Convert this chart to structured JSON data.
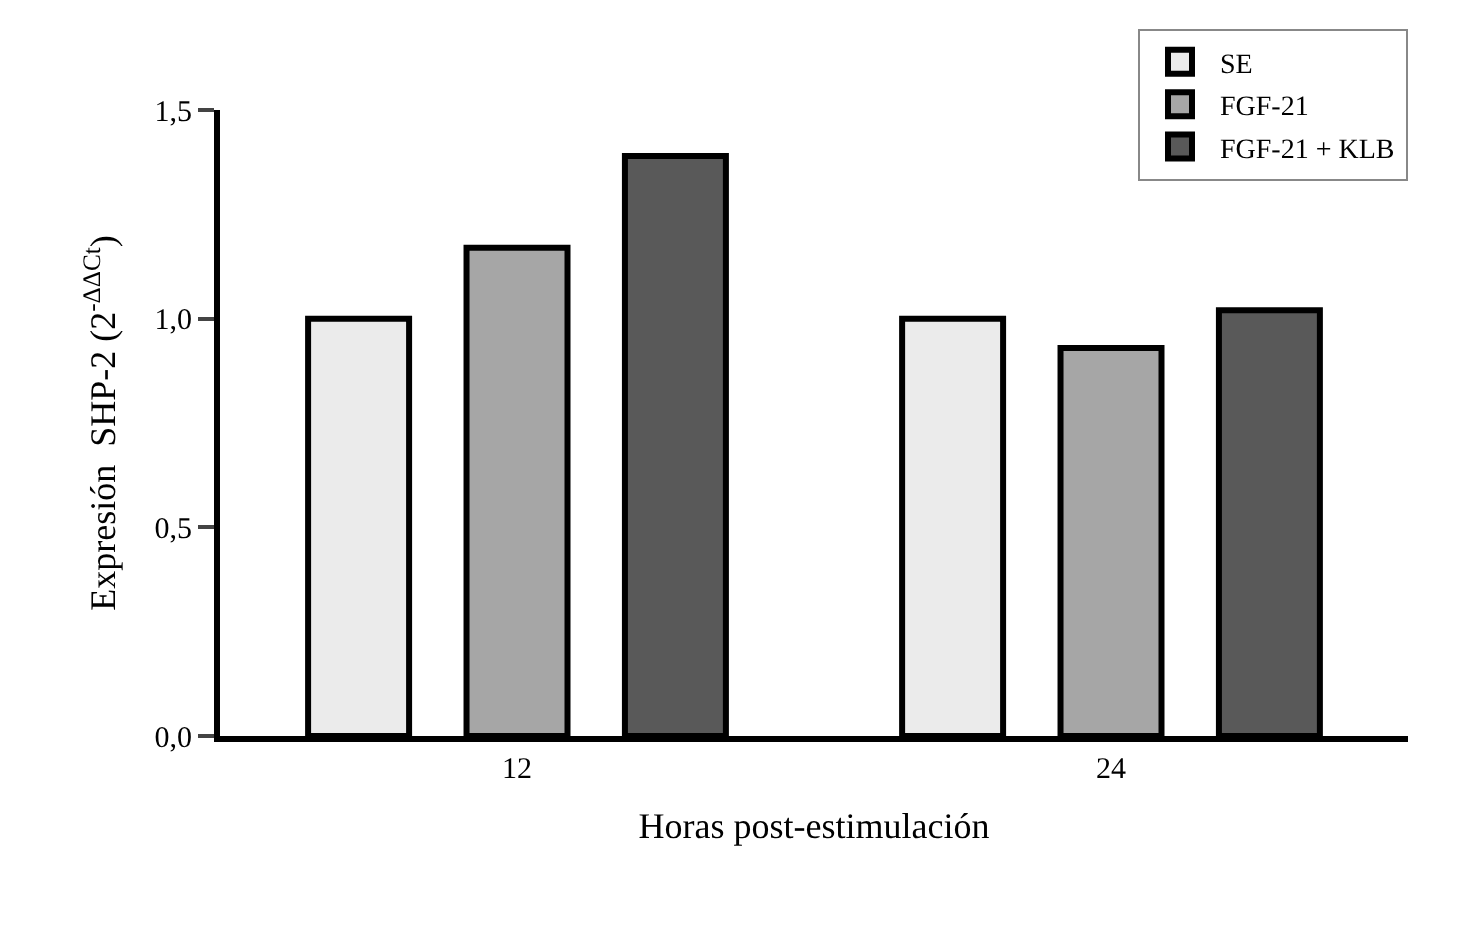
{
  "chart_data": {
    "type": "bar",
    "xlabel": "Horas post-estimulación",
    "ylabel": "Expresión  SHP-2 (2$^{-ΔΔCt}$)",
    "categories": [
      "12",
      "24"
    ],
    "series": [
      {
        "name": "SE",
        "color": "#ebebeb",
        "values": [
          1.0,
          1.0
        ]
      },
      {
        "name": "FGF-21",
        "color": "#a6a6a6",
        "values": [
          1.17,
          0.93
        ]
      },
      {
        "name": "FGF-21 + KLB",
        "color": "#595959",
        "values": [
          1.39,
          1.02
        ]
      }
    ],
    "ylim": [
      0,
      1.5
    ],
    "yticks": [
      {
        "value": 0,
        "label": "0,0"
      },
      {
        "value": 0.5,
        "label": "0,5"
      },
      {
        "value": 1.0,
        "label": "1,0"
      },
      {
        "value": 1.5,
        "label": "1,5"
      }
    ],
    "legend": "top right"
  }
}
